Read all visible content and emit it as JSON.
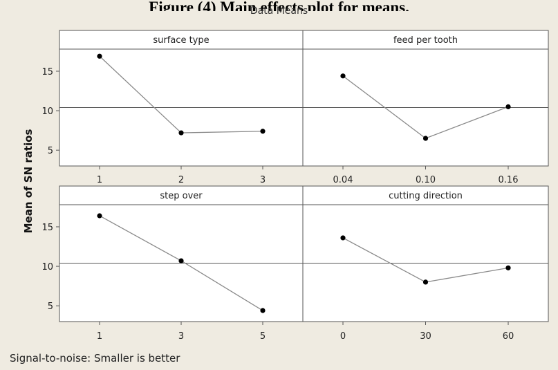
{
  "figure_caption": "Figure (4) Main effects plot for means.",
  "footnote": "Signal-to-noise: Smaller is better",
  "chart_data": {
    "type": "line",
    "title": "Data Means",
    "ylabel": "Mean of SN ratios",
    "ylim": [
      3.0,
      17.8
    ],
    "yticks": [
      5,
      10,
      15
    ],
    "grand_mean": 10.4,
    "panels": [
      {
        "title": "surface type",
        "categories": [
          "1",
          "2",
          "3"
        ],
        "values": [
          16.9,
          7.2,
          7.4
        ]
      },
      {
        "title": "feed per tooth",
        "categories": [
          "0.04",
          "0.10",
          "0.16"
        ],
        "values": [
          14.4,
          6.5,
          10.5
        ]
      },
      {
        "title": "step over",
        "categories": [
          "1",
          "3",
          "5"
        ],
        "values": [
          16.4,
          10.7,
          4.4
        ]
      },
      {
        "title": "cutting direction",
        "categories": [
          "0",
          "30",
          "60"
        ],
        "values": [
          13.6,
          8.0,
          9.8
        ]
      }
    ],
    "colors": {
      "line": "#8a8a8a",
      "point": "#000000",
      "reference": "#555555",
      "axis": "#555555"
    }
  }
}
